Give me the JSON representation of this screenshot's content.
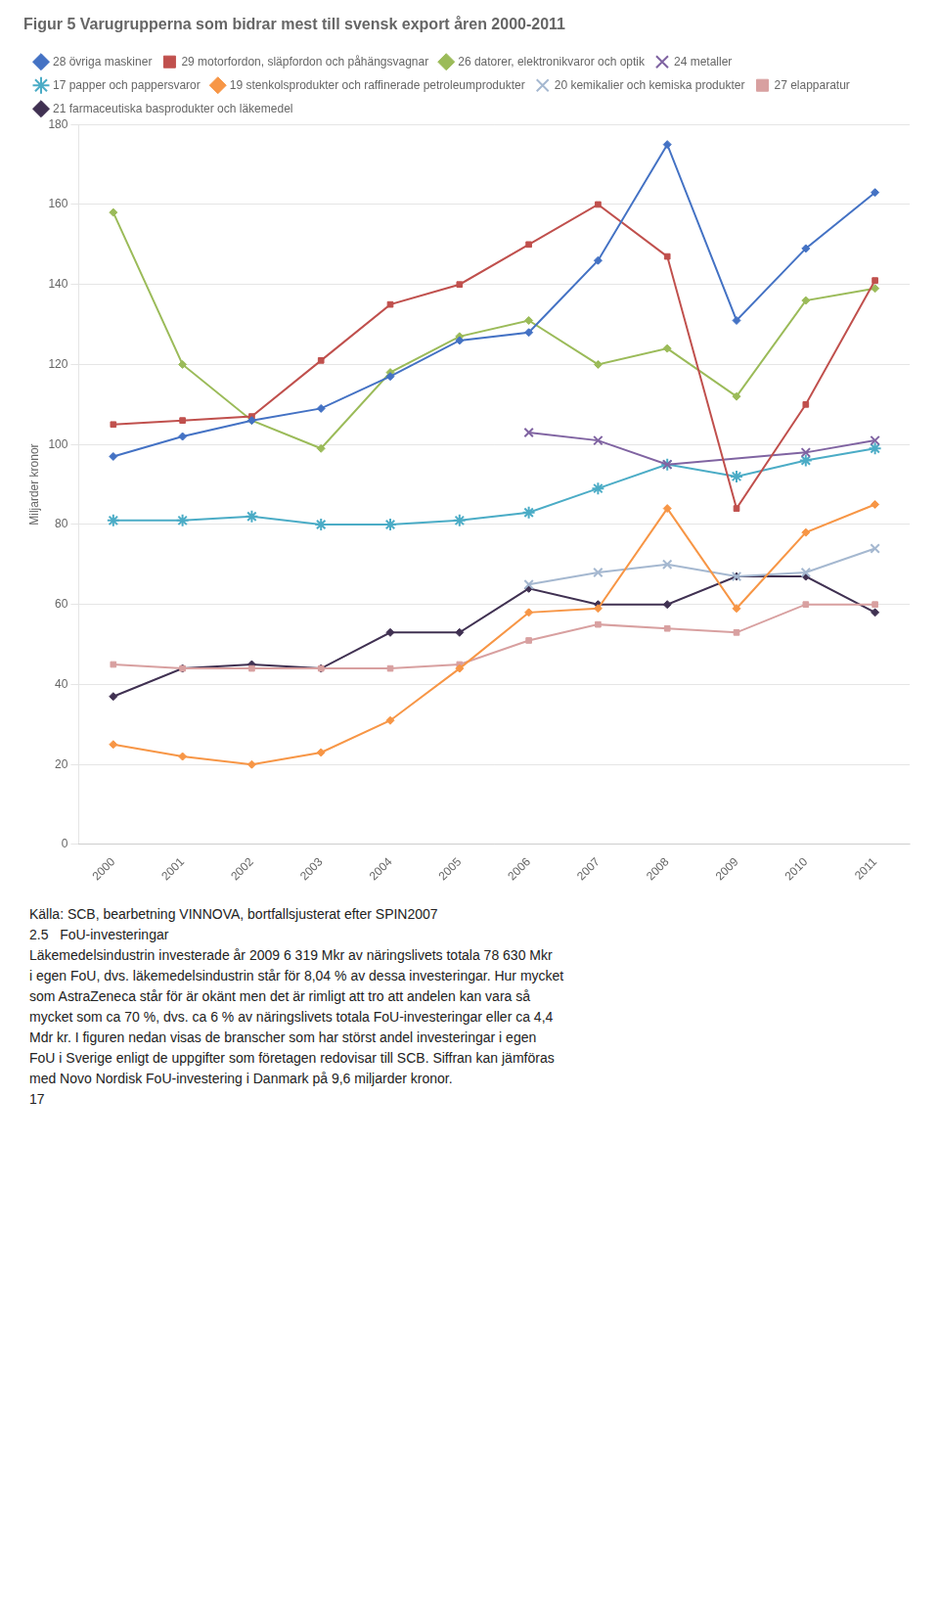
{
  "chart_data": {
    "type": "line",
    "title": "Figur 5 Varugrupperna som bidrar mest till svensk export åren 2000-2011",
    "ylabel": "Miljarder kronor",
    "x": [
      2000,
      2001,
      2002,
      2003,
      2004,
      2005,
      2006,
      2007,
      2008,
      2009,
      2010,
      2011
    ],
    "series": [
      {
        "name": "28 övriga maskiner",
        "color": "#4472C4",
        "marker": "diamond",
        "line_style": "solid",
        "values": [
          97,
          102,
          106,
          109,
          117,
          126,
          128,
          146,
          175,
          131,
          149,
          163
        ]
      },
      {
        "name": "29 motorfordon, släpfordon och påhängsvagnar",
        "color": "#C0504D",
        "marker": "square",
        "line_style": "solid",
        "values": [
          105,
          106,
          107,
          121,
          135,
          140,
          150,
          160,
          147,
          84,
          110,
          141
        ]
      },
      {
        "name": "26 datorer, elektronikvaror och optik",
        "color": "#9BBB59",
        "marker": "diamond",
        "line_style": "solid",
        "values": [
          158,
          120,
          106,
          99,
          118,
          127,
          131,
          120,
          124,
          112,
          136,
          139
        ]
      },
      {
        "name": "24 metaller",
        "color": "#8064A2",
        "marker": "x",
        "line_style": "solid",
        "values": [
          null,
          null,
          null,
          null,
          null,
          null,
          103,
          101,
          95,
          null,
          98,
          101
        ]
      },
      {
        "name": "17 papper och pappersvaror",
        "color": "#4BACC6",
        "marker": "star",
        "line_style": "solid",
        "values": [
          81,
          81,
          82,
          80,
          80,
          81,
          83,
          89,
          95,
          92,
          96,
          99
        ]
      },
      {
        "name": "19 stenkolsprodukter och raffinerade petroleumprodukter",
        "color": "#F79646",
        "marker": "diamond",
        "line_style": "solid",
        "values": [
          25,
          22,
          20,
          23,
          31,
          44,
          58,
          59,
          84,
          59,
          78,
          85
        ]
      },
      {
        "name": "20 kemikalier och kemiska produkter",
        "color": "#A5B8D0",
        "marker": "x",
        "line_style": "solid",
        "values": [
          null,
          null,
          null,
          null,
          null,
          null,
          65,
          68,
          70,
          67,
          68,
          74
        ]
      },
      {
        "name": "27 elapparatur",
        "color": "#D8A0A0",
        "marker": "square",
        "line_style": "solid",
        "values": [
          45,
          44,
          44,
          44,
          44,
          45,
          51,
          55,
          54,
          53,
          60,
          60
        ]
      },
      {
        "name": "21 farmaceutiska basprodukter och läkemedel",
        "color": "#403152",
        "marker": "diamond",
        "line_style": "solid",
        "values": [
          37,
          44,
          45,
          44,
          53,
          53,
          64,
          60,
          60,
          67,
          67,
          58
        ]
      }
    ],
    "xlim": [
      1999.5,
      2011.5
    ],
    "xticks": [
      2000,
      2001,
      2002,
      2003,
      2004,
      2005,
      2006,
      2007,
      2008,
      2009,
      2010,
      2011
    ],
    "ylim": [
      0,
      180
    ],
    "yticks": [
      0,
      20,
      40,
      60,
      80,
      100,
      120,
      140,
      160,
      180
    ],
    "grid": "y",
    "legend": "top",
    "annotations": [
      "Källa: SCB, bearbetning VINNOVA, bortfallsjusterat efter SPIN2007",
      "2.5   FoU-investeringar",
      "Läkemedelsindustrin investerade år 2009 6 319 Mkr av näringslivets totala 78 630 Mkr",
      "i egen FoU, dvs. läkemedelsindustrin står för 8,04 % av dessa investeringar. Hur mycket",
      "som AstraZeneca står för är okänt men det är rimligt att tro att andelen kan vara så",
      "mycket som ca 70 %, dvs. ca 6 % av näringslivets totala FoU-investeringar eller ca 4,4",
      "Mdr kr. I figuren nedan visas de branscher som har störst andel investeringar i egen",
      "FoU i Sverige enligt de uppgifter som företagen redovisar till SCB. Siffran kan jämföras",
      "med Novo Nordisk FoU-investering i Danmark på 9,6 miljarder kronor.",
      "17"
    ]
  }
}
